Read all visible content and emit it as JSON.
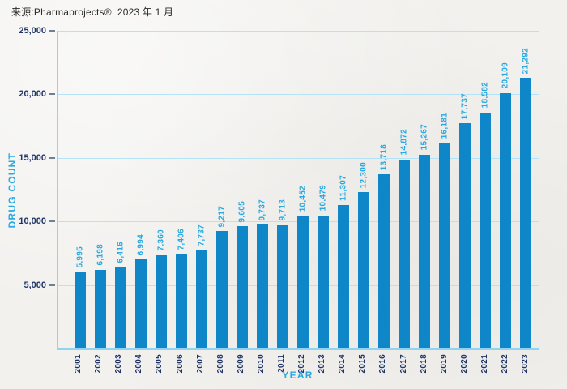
{
  "header": {
    "source": "来源:Pharmaprojects®, 2023 年 1 月"
  },
  "chart_data": {
    "type": "bar",
    "title": "",
    "xlabel": "YEAR",
    "ylabel": "DRUG COUNT",
    "ylim": [
      0,
      25000
    ],
    "grid": true,
    "legend": false,
    "categories": [
      "2001",
      "2002",
      "2003",
      "2004",
      "2005",
      "2006",
      "2007",
      "2008",
      "2009",
      "2010",
      "2011",
      "2012",
      "2013",
      "2014",
      "2015",
      "2016",
      "2017",
      "2018",
      "2019",
      "2020",
      "2021",
      "2022",
      "2023"
    ],
    "values": [
      5995,
      6198,
      6416,
      6994,
      7360,
      7406,
      7737,
      9217,
      9605,
      9737,
      9713,
      10452,
      10479,
      11307,
      12300,
      13718,
      14872,
      15267,
      16181,
      17737,
      18582,
      20109,
      21292
    ],
    "value_labels": [
      "5,995",
      "6,198",
      "6,416",
      "6,994",
      "7,360",
      "7,406",
      "7,737",
      "9,217",
      "9,605",
      "9,737",
      "9,713",
      "10,452",
      "10,479",
      "11,307",
      "12,300",
      "13,718",
      "14,872",
      "15,267",
      "16,181",
      "17,737",
      "18,582",
      "20,109",
      "21,292"
    ],
    "yticks": [
      {
        "value": 5000,
        "label": "5,000"
      },
      {
        "value": 10000,
        "label": "10,000"
      },
      {
        "value": 15000,
        "label": "15,000"
      },
      {
        "value": 20000,
        "label": "20,000"
      },
      {
        "value": 25000,
        "label": "25,000"
      }
    ],
    "colors": {
      "bar": "#0e86c8",
      "accent_cyan": "#29a9e1",
      "navy_text": "#1f3569",
      "gridline": "#b2e3f7",
      "axis_line": "#8fd4f2",
      "tick_dash": "#6e8096",
      "background": "#f2f1ee",
      "source_text": "#2a2a2a"
    }
  }
}
